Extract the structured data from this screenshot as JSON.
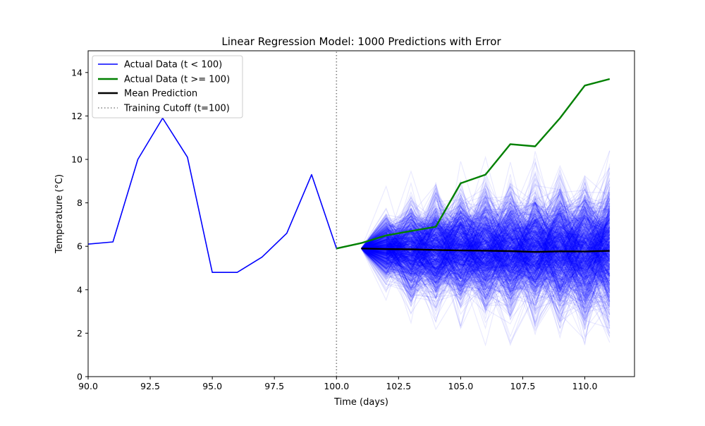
{
  "chart_data": {
    "type": "line",
    "title": "Linear Regression Model: 1000 Predictions with Error",
    "xlabel": "Time (days)",
    "ylabel": "Temperature (°C)",
    "xlim": [
      90,
      112
    ],
    "ylim": [
      0,
      15
    ],
    "xticks": [
      "90.0",
      "92.5",
      "95.0",
      "97.5",
      "100.0",
      "102.5",
      "105.0",
      "107.5",
      "110.0"
    ],
    "yticks": [
      "0",
      "2",
      "4",
      "6",
      "8",
      "10",
      "12",
      "14"
    ],
    "grid": false,
    "legend_position": "upper-left",
    "cutoff_x": 100,
    "series": [
      {
        "name": "Actual Data (t < 100)",
        "color": "#0000ff",
        "x": [
          90,
          91,
          92,
          93,
          94,
          95,
          96,
          97,
          98,
          99,
          100
        ],
        "y": [
          6.1,
          6.2,
          10.0,
          11.9,
          10.1,
          4.8,
          4.8,
          5.5,
          6.6,
          9.3,
          5.9
        ]
      },
      {
        "name": "Actual Data (t >= 100)",
        "color": "#008000",
        "x": [
          100,
          101,
          102,
          103,
          104,
          105,
          106,
          107,
          108,
          109,
          110,
          111
        ],
        "y": [
          5.9,
          6.15,
          6.5,
          6.7,
          6.9,
          8.9,
          9.3,
          10.7,
          10.6,
          11.9,
          13.4,
          13.7
        ]
      },
      {
        "name": "Mean Prediction",
        "color": "#000000",
        "x": [
          101,
          102,
          103,
          104,
          105,
          106,
          107,
          108,
          109,
          110,
          111
        ],
        "y": [
          5.9,
          5.87,
          5.86,
          5.83,
          5.81,
          5.8,
          5.78,
          5.74,
          5.77,
          5.76,
          5.79
        ]
      },
      {
        "name": "Training Cutoff (t=100)",
        "color": "#808080",
        "x": [
          100,
          100
        ],
        "y": [
          0,
          15
        ]
      }
    ],
    "prediction_paths": {
      "count": 1000,
      "color": "#0000ff",
      "start_x": 101,
      "start_y": 5.9,
      "end_x": 111,
      "min_y_approx": 1.45,
      "max_y_approx": 10.4
    }
  }
}
